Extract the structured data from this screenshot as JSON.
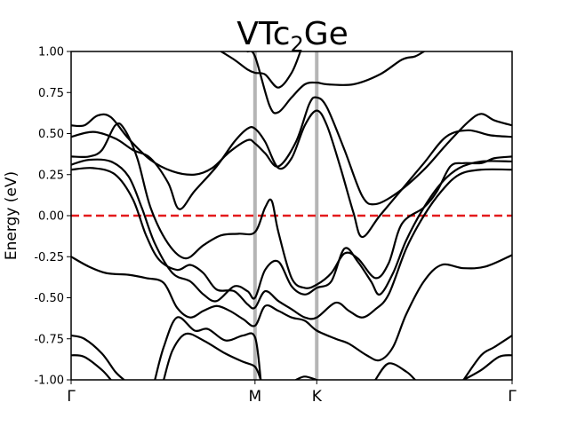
{
  "chart_data": {
    "type": "line",
    "title": "VTc",
    "title_subscript": "2",
    "title_suffix": "Ge",
    "xlabel": "",
    "ylabel": "Energy (eV)",
    "ylim": [
      -1.0,
      1.0
    ],
    "xlim": [
      0,
      1
    ],
    "yticks": [
      "1.00",
      "0.75",
      "0.50",
      "0.25",
      "0.00",
      "-0.25",
      "-0.50",
      "-0.75",
      "-1.00"
    ],
    "ytick_values": [
      1.0,
      0.75,
      0.5,
      0.25,
      0.0,
      -0.25,
      -0.5,
      -0.75,
      -1.0
    ],
    "high_symmetry_points": [
      {
        "label": "Γ",
        "x": 0.0
      },
      {
        "label": "M",
        "x": 0.417
      },
      {
        "label": "K",
        "x": 0.557
      },
      {
        "label": "Γ",
        "x": 1.0
      }
    ],
    "fermi_level": {
      "y": 0.0,
      "color": "#e31a1c",
      "style": "dashed"
    },
    "vertical_line_color": "#b5b5b5",
    "band_color": "#000000",
    "grid": false,
    "series": [
      {
        "values": [
          [
            0.0,
            0.55
          ],
          [
            0.03,
            0.55
          ],
          [
            0.06,
            0.61
          ],
          [
            0.09,
            0.6
          ],
          [
            0.13,
            0.47
          ],
          [
            0.18,
            0.34
          ],
          [
            0.23,
            0.27
          ],
          [
            0.28,
            0.25
          ],
          [
            0.32,
            0.29
          ],
          [
            0.36,
            0.39
          ],
          [
            0.4,
            0.46
          ],
          [
            0.417,
            0.44
          ],
          [
            0.44,
            0.38
          ],
          [
            0.47,
            0.3
          ],
          [
            0.51,
            0.45
          ],
          [
            0.54,
            0.68
          ],
          [
            0.557,
            0.72
          ],
          [
            0.58,
            0.66
          ],
          [
            0.62,
            0.4
          ],
          [
            0.66,
            0.12
          ],
          [
            0.69,
            0.07
          ],
          [
            0.74,
            0.14
          ],
          [
            0.8,
            0.28
          ],
          [
            0.85,
            0.43
          ],
          [
            0.9,
            0.57
          ],
          [
            0.93,
            0.62
          ],
          [
            0.96,
            0.58
          ],
          [
            1.0,
            0.55
          ]
        ]
      },
      {
        "values": [
          [
            0.0,
            0.48
          ],
          [
            0.05,
            0.51
          ],
          [
            0.1,
            0.47
          ],
          [
            0.14,
            0.4
          ],
          [
            0.18,
            0.35
          ],
          [
            0.22,
            0.2
          ],
          [
            0.245,
            0.04
          ],
          [
            0.28,
            0.15
          ],
          [
            0.33,
            0.3
          ],
          [
            0.37,
            0.45
          ],
          [
            0.4,
            0.53
          ],
          [
            0.417,
            0.53
          ],
          [
            0.44,
            0.45
          ],
          [
            0.47,
            0.29
          ],
          [
            0.5,
            0.35
          ],
          [
            0.53,
            0.55
          ],
          [
            0.557,
            0.64
          ],
          [
            0.58,
            0.55
          ],
          [
            0.61,
            0.3
          ],
          [
            0.64,
            0.02
          ],
          [
            0.66,
            -0.13
          ],
          [
            0.7,
            0.0
          ],
          [
            0.75,
            0.16
          ],
          [
            0.8,
            0.32
          ],
          [
            0.85,
            0.48
          ],
          [
            0.9,
            0.52
          ],
          [
            0.95,
            0.49
          ],
          [
            1.0,
            0.48
          ]
        ]
      },
      {
        "values": [
          [
            0.0,
            0.36
          ],
          [
            0.04,
            0.36
          ],
          [
            0.07,
            0.4
          ],
          [
            0.1,
            0.55
          ],
          [
            0.12,
            0.53
          ],
          [
            0.15,
            0.35
          ],
          [
            0.18,
            0.05
          ],
          [
            0.22,
            -0.17
          ],
          [
            0.26,
            -0.26
          ],
          [
            0.3,
            -0.18
          ],
          [
            0.34,
            -0.12
          ],
          [
            0.38,
            -0.11
          ],
          [
            0.417,
            -0.1
          ],
          [
            0.44,
            0.05
          ],
          [
            0.455,
            0.09
          ],
          [
            0.47,
            -0.1
          ],
          [
            0.5,
            -0.38
          ],
          [
            0.53,
            -0.44
          ],
          [
            0.557,
            -0.42
          ],
          [
            0.59,
            -0.35
          ],
          [
            0.62,
            -0.23
          ],
          [
            0.65,
            -0.26
          ],
          [
            0.69,
            -0.38
          ],
          [
            0.72,
            -0.29
          ],
          [
            0.75,
            -0.05
          ],
          [
            0.8,
            0.05
          ],
          [
            0.83,
            0.15
          ],
          [
            0.86,
            0.3
          ],
          [
            0.89,
            0.32
          ],
          [
            0.93,
            0.32
          ],
          [
            0.96,
            0.35
          ],
          [
            1.0,
            0.36
          ]
        ]
      },
      {
        "values": [
          [
            0.0,
            0.31
          ],
          [
            0.04,
            0.34
          ],
          [
            0.09,
            0.33
          ],
          [
            0.13,
            0.24
          ],
          [
            0.16,
            0.05
          ],
          [
            0.19,
            -0.17
          ],
          [
            0.23,
            -0.35
          ],
          [
            0.27,
            -0.4
          ],
          [
            0.3,
            -0.48
          ],
          [
            0.33,
            -0.52
          ],
          [
            0.37,
            -0.43
          ],
          [
            0.4,
            -0.46
          ],
          [
            0.417,
            -0.5
          ],
          [
            0.44,
            -0.33
          ],
          [
            0.47,
            -0.28
          ],
          [
            0.5,
            -0.43
          ],
          [
            0.53,
            -0.48
          ],
          [
            0.557,
            -0.44
          ],
          [
            0.59,
            -0.4
          ],
          [
            0.62,
            -0.2
          ],
          [
            0.65,
            -0.28
          ],
          [
            0.68,
            -0.4
          ],
          [
            0.7,
            -0.48
          ],
          [
            0.73,
            -0.35
          ],
          [
            0.76,
            -0.15
          ],
          [
            0.8,
            0.05
          ],
          [
            0.84,
            0.2
          ],
          [
            0.88,
            0.29
          ],
          [
            0.93,
            0.33
          ],
          [
            1.0,
            0.33
          ]
        ]
      },
      {
        "values": [
          [
            0.0,
            0.28
          ],
          [
            0.05,
            0.29
          ],
          [
            0.1,
            0.25
          ],
          [
            0.14,
            0.1
          ],
          [
            0.17,
            -0.12
          ],
          [
            0.2,
            -0.27
          ],
          [
            0.24,
            -0.33
          ],
          [
            0.27,
            -0.3
          ],
          [
            0.3,
            -0.35
          ],
          [
            0.33,
            -0.45
          ],
          [
            0.37,
            -0.46
          ],
          [
            0.4,
            -0.54
          ],
          [
            0.417,
            -0.56
          ],
          [
            0.44,
            -0.46
          ],
          [
            0.47,
            -0.52
          ],
          [
            0.5,
            -0.57
          ],
          [
            0.53,
            -0.62
          ],
          [
            0.557,
            -0.62
          ],
          [
            0.6,
            -0.53
          ],
          [
            0.63,
            -0.58
          ],
          [
            0.66,
            -0.62
          ],
          [
            0.69,
            -0.57
          ],
          [
            0.72,
            -0.48
          ],
          [
            0.76,
            -0.2
          ],
          [
            0.8,
            0.0
          ],
          [
            0.84,
            0.15
          ],
          [
            0.88,
            0.25
          ],
          [
            0.93,
            0.28
          ],
          [
            1.0,
            0.28
          ]
        ]
      },
      {
        "values": [
          [
            0.0,
            -0.25
          ],
          [
            0.04,
            -0.31
          ],
          [
            0.08,
            -0.35
          ],
          [
            0.13,
            -0.36
          ],
          [
            0.17,
            -0.38
          ],
          [
            0.21,
            -0.41
          ],
          [
            0.24,
            -0.56
          ],
          [
            0.27,
            -0.62
          ],
          [
            0.3,
            -0.58
          ],
          [
            0.33,
            -0.55
          ],
          [
            0.36,
            -0.58
          ],
          [
            0.39,
            -0.63
          ],
          [
            0.417,
            -0.67
          ],
          [
            0.44,
            -0.55
          ],
          [
            0.47,
            -0.58
          ],
          [
            0.5,
            -0.62
          ],
          [
            0.53,
            -0.64
          ],
          [
            0.557,
            -0.7
          ],
          [
            0.6,
            -0.75
          ],
          [
            0.63,
            -0.78
          ],
          [
            0.67,
            -0.85
          ],
          [
            0.7,
            -0.88
          ],
          [
            0.73,
            -0.8
          ],
          [
            0.76,
            -0.6
          ],
          [
            0.8,
            -0.4
          ],
          [
            0.84,
            -0.3
          ],
          [
            0.89,
            -0.32
          ],
          [
            0.94,
            -0.31
          ],
          [
            1.0,
            -0.24
          ]
        ]
      },
      {
        "values": [
          [
            0.0,
            -0.73
          ],
          [
            0.03,
            -0.75
          ],
          [
            0.07,
            -0.84
          ],
          [
            0.1,
            -0.95
          ],
          [
            0.12,
            -1.0
          ]
        ]
      },
      {
        "values": [
          [
            0.0,
            -0.85
          ],
          [
            0.03,
            -0.86
          ],
          [
            0.07,
            -0.94
          ],
          [
            0.09,
            -1.0
          ]
        ]
      },
      {
        "values": [
          [
            0.19,
            -1.0
          ],
          [
            0.21,
            -0.8
          ],
          [
            0.24,
            -0.62
          ],
          [
            0.28,
            -0.7
          ],
          [
            0.31,
            -0.69
          ],
          [
            0.35,
            -0.76
          ],
          [
            0.39,
            -0.73
          ],
          [
            0.417,
            -0.74
          ],
          [
            0.43,
            -1.0
          ]
        ]
      },
      {
        "values": [
          [
            0.21,
            -1.0
          ],
          [
            0.23,
            -0.82
          ],
          [
            0.26,
            -0.72
          ],
          [
            0.3,
            -0.76
          ],
          [
            0.35,
            -0.84
          ],
          [
            0.39,
            -0.89
          ],
          [
            0.417,
            -0.92
          ],
          [
            0.43,
            -1.0
          ]
        ]
      },
      {
        "values": [
          [
            0.34,
            1.0
          ],
          [
            0.37,
            0.95
          ],
          [
            0.4,
            0.89
          ],
          [
            0.417,
            0.87
          ],
          [
            0.44,
            0.86
          ],
          [
            0.47,
            0.78
          ],
          [
            0.5,
            0.87
          ],
          [
            0.52,
            1.0
          ]
        ]
      },
      {
        "values": [
          [
            0.4,
            1.0
          ],
          [
            0.417,
            0.97
          ],
          [
            0.45,
            0.67
          ],
          [
            0.47,
            0.63
          ],
          [
            0.5,
            0.72
          ],
          [
            0.53,
            0.8
          ],
          [
            0.557,
            0.81
          ],
          [
            0.58,
            0.8
          ],
          [
            0.64,
            0.8
          ],
          [
            0.7,
            0.86
          ],
          [
            0.75,
            0.95
          ],
          [
            0.78,
            0.97
          ],
          [
            0.8,
            1.0
          ]
        ]
      },
      {
        "values": [
          [
            0.51,
            -1.0
          ],
          [
            0.53,
            -0.98
          ],
          [
            0.557,
            -1.0
          ]
        ]
      },
      {
        "values": [
          [
            0.69,
            -1.0
          ],
          [
            0.72,
            -0.9
          ],
          [
            0.76,
            -0.95
          ],
          [
            0.78,
            -1.0
          ]
        ]
      },
      {
        "values": [
          [
            0.89,
            -1.0
          ],
          [
            0.93,
            -0.85
          ],
          [
            0.96,
            -0.8
          ],
          [
            1.0,
            -0.73
          ]
        ]
      },
      {
        "values": [
          [
            0.89,
            -1.0
          ],
          [
            0.93,
            -0.94
          ],
          [
            0.97,
            -0.86
          ],
          [
            1.0,
            -0.85
          ]
        ]
      }
    ]
  }
}
